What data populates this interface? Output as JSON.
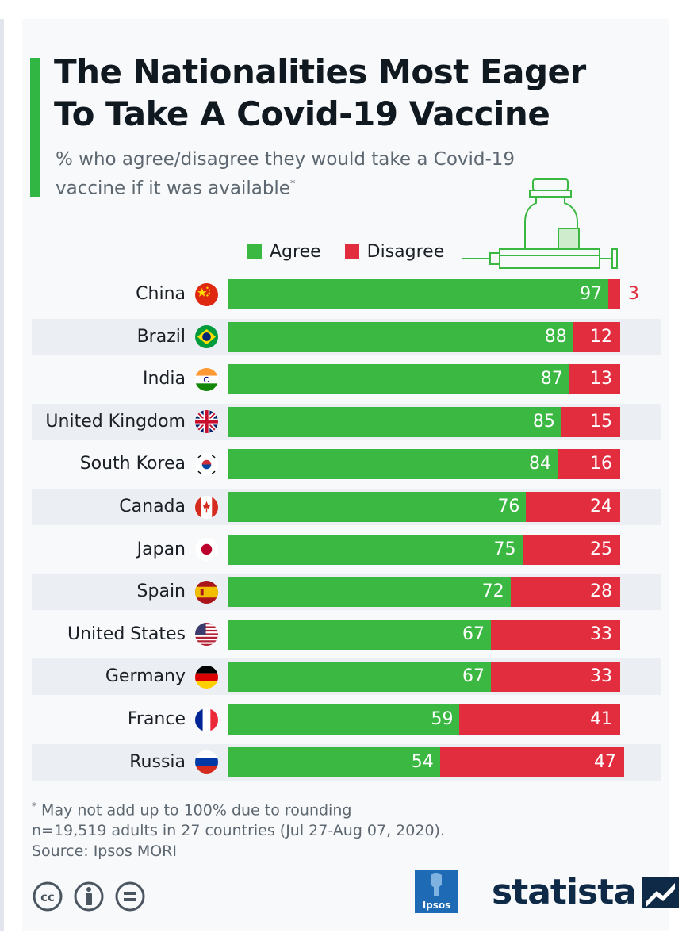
{
  "header": {
    "title_line1": "The Nationalities Most Eager",
    "title_line2": "To Take A Covid-19 Vaccine",
    "subtitle_line1": "% who agree/disagree they would take a Covid-19",
    "subtitle_line2": "vaccine if it was available",
    "subtitle_marker": "*"
  },
  "chart_data": {
    "type": "bar",
    "orientation": "horizontal",
    "stacked": true,
    "categories": [
      "China",
      "Brazil",
      "India",
      "United Kingdom",
      "South Korea",
      "Canada",
      "Japan",
      "Spain",
      "United States",
      "Germany",
      "France",
      "Russia"
    ],
    "series": [
      {
        "name": "Agree",
        "color": "#3ab842",
        "values": [
          97,
          88,
          87,
          85,
          84,
          76,
          75,
          72,
          67,
          67,
          59,
          54
        ]
      },
      {
        "name": "Disagree",
        "color": "#e22d3f",
        "values": [
          3,
          12,
          13,
          15,
          16,
          24,
          25,
          28,
          33,
          33,
          41,
          47
        ]
      }
    ],
    "legend_position": "top",
    "xlim": [
      0,
      101
    ]
  },
  "footnote": {
    "marker": "*",
    "note": "May not add up to 100% due to rounding",
    "sample": "n=19,519 adults in 27 countries (Jul 27-Aug 07, 2020).",
    "source": "Source: Ipsos MORI"
  },
  "branding": {
    "partner_logo": "Ipsos",
    "brand_logo": "statista"
  },
  "colors": {
    "accent": "#31b643",
    "agree": "#3ab842",
    "disagree": "#e22d3f",
    "title": "#101820"
  }
}
